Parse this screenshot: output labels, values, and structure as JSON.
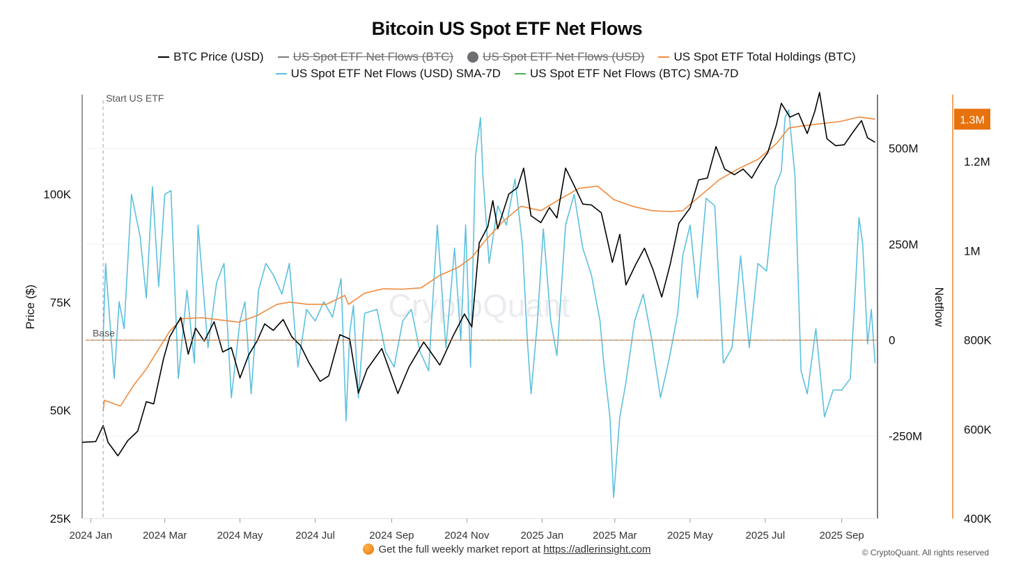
{
  "chart_data": {
    "type": "line",
    "title": "Bitcoin US Spot ETF Net Flows",
    "legend": [
      {
        "label": "BTC Price (USD)",
        "color": "#000000",
        "marker": "line",
        "enabled": true
      },
      {
        "label": "US Spot ETF Net Flows (BTC)",
        "color": "#7a7a7a",
        "marker": "line",
        "enabled": false
      },
      {
        "label": "US Spot ETF Net Flows (USD)",
        "color": "#6e6e73",
        "marker": "dot",
        "enabled": false
      },
      {
        "label": "US Spot ETF Total Holdings (BTC)",
        "color": "#f08a3c",
        "marker": "line",
        "enabled": true
      },
      {
        "label": "US Spot ETF Net Flows (USD) SMA-7D",
        "color": "#5bc0de",
        "marker": "line",
        "enabled": true
      },
      {
        "label": "US Spot ETF Net Flows (BTC) SMA-7D",
        "color": "#4caf50",
        "marker": "line",
        "enabled": true
      }
    ],
    "x_ticks": [
      "2024 Jan",
      "2024 Mar",
      "2024 May",
      "2024 Jul",
      "2024 Sep",
      "2024 Nov",
      "2025 Jan",
      "2025 Mar",
      "2025 May",
      "2025 Jul",
      "2025 Sep"
    ],
    "x_range": [
      "2023-12-25",
      "2025-09-30"
    ],
    "left_axis": {
      "label": "Price ($)",
      "ticks": [
        "25K",
        "50K",
        "75K",
        "100K"
      ],
      "tick_values": [
        25000,
        50000,
        75000,
        100000
      ],
      "range": [
        25000,
        123000
      ]
    },
    "middle_axis": {
      "label": "Netflow",
      "ticks": [
        "-250M",
        "0",
        "250M",
        "500M"
      ],
      "tick_values": [
        -250000000,
        0,
        250000000,
        500000000
      ],
      "range": [
        -465000000,
        640000000
      ]
    },
    "right_axis": {
      "ticks": [
        "400K",
        "600K",
        "800K",
        "1M",
        "1.2M"
      ],
      "tick_values": [
        400000,
        600000,
        800000,
        1000000,
        1200000
      ],
      "range": [
        400000,
        1350000
      ],
      "current_value_label": "1.3M",
      "color": "#f08a3c"
    },
    "annotations": {
      "start_label": "Start US ETF",
      "start_date": "2024-01-11",
      "base_label": "Base"
    },
    "watermark": "CryptoQuant",
    "series": [
      {
        "name": "BTC Price (USD)",
        "axis": "left",
        "color": "#000000",
        "x": [
          "2023-12-25",
          "2024-01-05",
          "2024-01-11",
          "2024-01-15",
          "2024-01-23",
          "2024-01-31",
          "2024-02-08",
          "2024-02-15",
          "2024-02-21",
          "2024-02-29",
          "2024-03-05",
          "2024-03-14",
          "2024-03-20",
          "2024-03-26",
          "2024-04-02",
          "2024-04-10",
          "2024-04-17",
          "2024-04-24",
          "2024-05-01",
          "2024-05-08",
          "2024-05-15",
          "2024-05-21",
          "2024-05-28",
          "2024-06-05",
          "2024-06-12",
          "2024-06-19",
          "2024-06-26",
          "2024-07-05",
          "2024-07-12",
          "2024-07-21",
          "2024-07-29",
          "2024-08-05",
          "2024-08-12",
          "2024-08-24",
          "2024-09-06",
          "2024-09-15",
          "2024-09-27",
          "2024-10-10",
          "2024-10-21",
          "2024-10-30",
          "2024-11-05",
          "2024-11-11",
          "2024-11-18",
          "2024-11-22",
          "2024-11-26",
          "2024-12-05",
          "2024-12-12",
          "2024-12-17",
          "2024-12-23",
          "2024-12-31",
          "2025-01-07",
          "2025-01-13",
          "2025-01-20",
          "2025-01-27",
          "2025-02-03",
          "2025-02-10",
          "2025-02-18",
          "2025-02-27",
          "2025-03-05",
          "2025-03-10",
          "2025-03-18",
          "2025-03-25",
          "2025-04-01",
          "2025-04-08",
          "2025-04-15",
          "2025-04-22",
          "2025-05-01",
          "2025-05-08",
          "2025-05-15",
          "2025-05-22",
          "2025-05-29",
          "2025-06-06",
          "2025-06-13",
          "2025-06-20",
          "2025-06-27",
          "2025-07-03",
          "2025-07-10",
          "2025-07-14",
          "2025-07-21",
          "2025-07-28",
          "2025-08-04",
          "2025-08-10",
          "2025-08-14",
          "2025-08-20",
          "2025-08-27",
          "2025-09-03",
          "2025-09-10",
          "2025-09-17",
          "2025-09-22",
          "2025-09-28"
        ],
        "values": [
          42600,
          42800,
          46500,
          42600,
          39500,
          43000,
          45200,
          52000,
          51500,
          62000,
          67000,
          71500,
          63000,
          69000,
          66000,
          70500,
          63500,
          64500,
          57500,
          62800,
          66100,
          70000,
          68500,
          71000,
          67000,
          65000,
          61000,
          56700,
          58000,
          67500,
          66500,
          54000,
          59500,
          64300,
          53900,
          60000,
          65800,
          60500,
          67300,
          72300,
          69300,
          88700,
          92500,
          98500,
          92000,
          100000,
          101500,
          106000,
          95000,
          93400,
          96900,
          94500,
          106000,
          102000,
          97700,
          97500,
          95700,
          84200,
          90700,
          79000,
          83800,
          87500,
          82500,
          76200,
          83900,
          93300,
          96800,
          103300,
          103700,
          111000,
          105800,
          104500,
          105800,
          103700,
          107200,
          109600,
          116000,
          121000,
          117800,
          118700,
          114000,
          119000,
          123500,
          112800,
          111200,
          111400,
          114300,
          117000,
          113000,
          112000
        ]
      },
      {
        "name": "US Spot ETF Total Holdings (BTC)",
        "axis": "right",
        "color": "#f08a3c",
        "x": [
          "2024-01-11",
          "2024-01-12",
          "2024-01-25",
          "2024-02-05",
          "2024-02-15",
          "2024-02-25",
          "2024-03-05",
          "2024-03-15",
          "2024-03-31",
          "2024-04-15",
          "2024-04-30",
          "2024-05-15",
          "2024-05-31",
          "2024-06-10",
          "2024-06-25",
          "2024-07-10",
          "2024-07-25",
          "2024-07-28",
          "2024-08-10",
          "2024-08-25",
          "2024-09-10",
          "2024-09-25",
          "2024-10-10",
          "2024-10-25",
          "2024-11-05",
          "2024-11-15",
          "2024-11-30",
          "2024-12-15",
          "2024-12-31",
          "2025-01-15",
          "2025-01-31",
          "2025-02-15",
          "2025-02-28",
          "2025-03-15",
          "2025-03-31",
          "2025-04-15",
          "2025-04-25",
          "2025-05-10",
          "2025-05-25",
          "2025-06-10",
          "2025-06-25",
          "2025-07-10",
          "2025-07-20",
          "2025-07-31",
          "2025-08-15",
          "2025-08-31",
          "2025-09-15",
          "2025-09-28"
        ],
        "values": [
          640000,
          665000,
          652000,
          700000,
          735000,
          780000,
          820000,
          848000,
          850000,
          845000,
          840000,
          855000,
          880000,
          885000,
          880000,
          880000,
          900000,
          880000,
          905000,
          915000,
          914000,
          917000,
          945000,
          963000,
          985000,
          1020000,
          1065000,
          1100000,
          1090000,
          1115000,
          1140000,
          1145000,
          1115000,
          1100000,
          1090000,
          1088000,
          1090000,
          1125000,
          1160000,
          1185000,
          1205000,
          1240000,
          1275000,
          1280000,
          1285000,
          1290000,
          1300000,
          1295000
        ]
      },
      {
        "name": "US Spot ETF Net Flows (USD) SMA-7D",
        "axis": "middle",
        "color": "#5bc0de",
        "x": [
          "2024-01-11",
          "2024-01-13",
          "2024-01-15",
          "2024-01-20",
          "2024-01-24",
          "2024-01-28",
          "2024-02-03",
          "2024-02-10",
          "2024-02-15",
          "2024-02-20",
          "2024-02-25",
          "2024-03-01",
          "2024-03-06",
          "2024-03-12",
          "2024-03-19",
          "2024-03-25",
          "2024-03-28",
          "2024-04-05",
          "2024-04-12",
          "2024-04-18",
          "2024-04-24",
          "2024-05-01",
          "2024-05-05",
          "2024-05-10",
          "2024-05-16",
          "2024-05-22",
          "2024-05-28",
          "2024-06-04",
          "2024-06-10",
          "2024-06-17",
          "2024-06-24",
          "2024-07-01",
          "2024-07-08",
          "2024-07-15",
          "2024-07-22",
          "2024-07-26",
          "2024-07-29",
          "2024-08-01",
          "2024-08-05",
          "2024-08-10",
          "2024-08-20",
          "2024-08-27",
          "2024-09-03",
          "2024-09-10",
          "2024-09-17",
          "2024-09-24",
          "2024-10-01",
          "2024-10-08",
          "2024-10-15",
          "2024-10-22",
          "2024-10-27",
          "2024-10-31",
          "2024-11-04",
          "2024-11-08",
          "2024-11-12",
          "2024-11-14",
          "2024-11-19",
          "2024-11-26",
          "2024-12-03",
          "2024-12-10",
          "2024-12-16",
          "2024-12-20",
          "2024-12-23",
          "2024-12-28",
          "2025-01-02",
          "2025-01-08",
          "2025-01-13",
          "2025-01-20",
          "2025-01-27",
          "2025-02-03",
          "2025-02-10",
          "2025-02-17",
          "2025-02-20",
          "2025-02-25",
          "2025-02-28",
          "2025-03-05",
          "2025-03-10",
          "2025-03-17",
          "2025-03-24",
          "2025-03-31",
          "2025-04-07",
          "2025-04-14",
          "2025-04-21",
          "2025-04-25",
          "2025-05-01",
          "2025-05-07",
          "2025-05-14",
          "2025-05-21",
          "2025-05-28",
          "2025-06-04",
          "2025-06-11",
          "2025-06-18",
          "2025-06-25",
          "2025-07-02",
          "2025-07-09",
          "2025-07-14",
          "2025-07-17",
          "2025-07-20",
          "2025-07-25",
          "2025-07-30",
          "2025-08-04",
          "2025-08-11",
          "2025-08-18",
          "2025-08-25",
          "2025-09-01",
          "2025-09-08",
          "2025-09-12",
          "2025-09-15",
          "2025-09-18",
          "2025-09-22",
          "2025-09-25",
          "2025-09-28"
        ],
        "values": [
          0,
          200000000,
          110000000,
          -100000000,
          100000000,
          30000000,
          380000000,
          270000000,
          110000000,
          400000000,
          140000000,
          380000000,
          390000000,
          -100000000,
          130000000,
          -60000000,
          300000000,
          -20000000,
          150000000,
          200000000,
          -150000000,
          50000000,
          100000000,
          -140000000,
          130000000,
          200000000,
          170000000,
          120000000,
          200000000,
          -70000000,
          80000000,
          50000000,
          100000000,
          60000000,
          160000000,
          -210000000,
          20000000,
          90000000,
          -150000000,
          70000000,
          80000000,
          -30000000,
          -70000000,
          50000000,
          80000000,
          -30000000,
          -80000000,
          300000000,
          -20000000,
          240000000,
          0,
          300000000,
          -70000000,
          480000000,
          580000000,
          430000000,
          200000000,
          350000000,
          300000000,
          420000000,
          250000000,
          0,
          -140000000,
          40000000,
          290000000,
          50000000,
          -40000000,
          300000000,
          380000000,
          240000000,
          170000000,
          50000000,
          -60000000,
          -200000000,
          -410000000,
          -200000000,
          -110000000,
          50000000,
          120000000,
          0,
          -150000000,
          -50000000,
          70000000,
          220000000,
          300000000,
          110000000,
          370000000,
          350000000,
          -60000000,
          -20000000,
          220000000,
          -20000000,
          200000000,
          180000000,
          400000000,
          440000000,
          580000000,
          600000000,
          430000000,
          -80000000,
          -140000000,
          30000000,
          -200000000,
          -130000000,
          -130000000,
          -100000000,
          130000000,
          320000000,
          250000000,
          -10000000,
          80000000,
          -60000000
        ]
      }
    ]
  },
  "footer": {
    "text": "Get the full weekly market report at",
    "link": "https://adlerinsight.com"
  },
  "copyright": "© CryptoQuant. All rights reserved"
}
